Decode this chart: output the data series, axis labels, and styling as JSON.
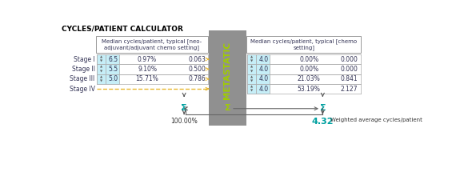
{
  "title": "CYCLES/PATIENT CALCULATOR",
  "title_color": "#000000",
  "title_fontsize": 6.5,
  "left_header": "Median cycles/patient, typical [neo-\nadjuvant/adjuvant chemo setting]",
  "right_header": "Median cycles/patient, typical [chemo\nsetting]",
  "stages": [
    "Stage I",
    "Stage II",
    "Stage III",
    "Stage IV"
  ],
  "left_cycles": [
    "6.5",
    "5.5",
    "5.0",
    null
  ],
  "left_pct": [
    "0.97%",
    "9.10%",
    "15.71%",
    ""
  ],
  "left_val": [
    "0.063",
    "0.500",
    "0.786",
    ""
  ],
  "right_cycles": [
    "4.0",
    "4.0",
    "4.0",
    "4.0"
  ],
  "right_pct": [
    "0.00%",
    "0.00%",
    "21.03%",
    "53.19%"
  ],
  "right_val": [
    "0.000",
    "0.000",
    "0.841",
    "2.127"
  ],
  "sum_left": "100.00%",
  "sum_right": "4.32",
  "sum_right_label": "Weighted average cycles/patient",
  "cell_bg": "#c6eef7",
  "gray_bg": "#909090",
  "yellow_dashed": "#e8b830",
  "teal": "#00a0a0",
  "green_text": "#a0cc00",
  "dark_text": "#333355",
  "line_color": "#aaaaaa",
  "arrow_color": "#555555"
}
